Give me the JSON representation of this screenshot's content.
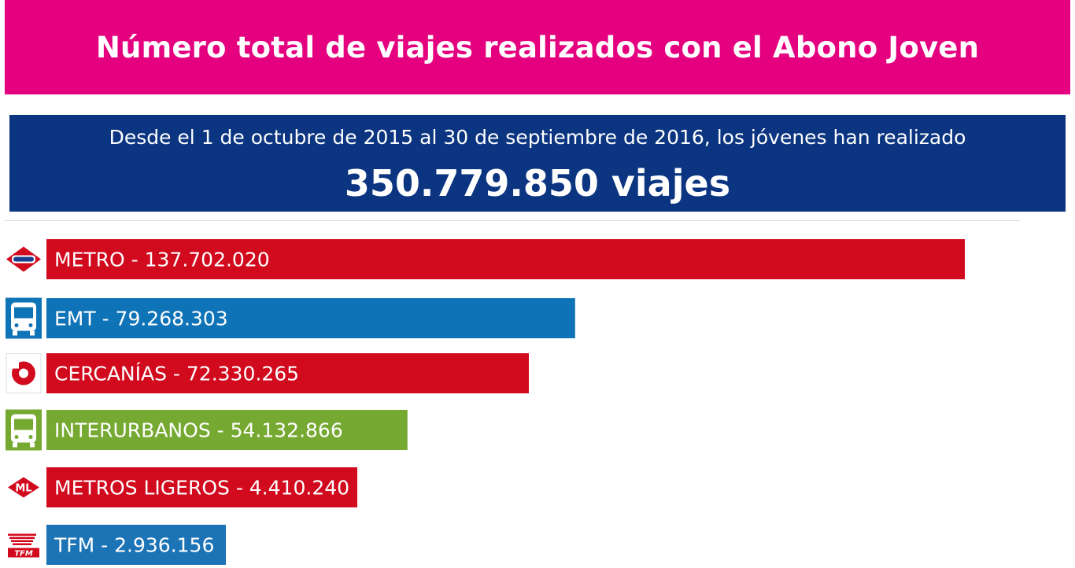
{
  "header": {
    "title": "Número total de viajes realizados con el Abono Joven",
    "subtitle": "Desde el 1 de octubre de 2015 al 30 de septiembre de 2016, los jóvenes han realizado",
    "total": "350.779.850 viajes"
  },
  "colors": {
    "title_bg": "#E4007F",
    "total_bg": "#0B3580",
    "metro": "#D10A1E",
    "emt": "#0E73B7",
    "cercanias": "#D10A1E",
    "interurbanos": "#76A932",
    "metros_ligeros": "#D10A1E",
    "tfm": "#1C74B7"
  },
  "chart_data": {
    "type": "bar",
    "orientation": "horizontal",
    "title": "Número total de viajes realizados con el Abono Joven",
    "categories": [
      "METRO",
      "EMT",
      "CERCANÍAS",
      "INTERURBANOS",
      "METROS LIGEROS",
      "TFM"
    ],
    "values": [
      137702020,
      79268303,
      72330265,
      54132866,
      4410240,
      2936156
    ],
    "labels": [
      "METRO - 137.702.020",
      "EMT - 79.268.303",
      "CERCANÍAS - 72.330.265",
      "INTERURBANOS - 54.132.866",
      "METROS LIGEROS - 4.410.240",
      "TFM - 2.936.156"
    ],
    "bar_colors": [
      "#D10A1E",
      "#0E73B7",
      "#D10A1E",
      "#76A932",
      "#D10A1E",
      "#1C74B7"
    ],
    "icons": [
      "metro-logo-icon",
      "bus-icon",
      "cercanias-logo-icon",
      "bus-icon",
      "metro-ligero-logo-icon",
      "tfm-logo-icon"
    ],
    "xlabel": "",
    "ylabel": "",
    "grid": false
  }
}
